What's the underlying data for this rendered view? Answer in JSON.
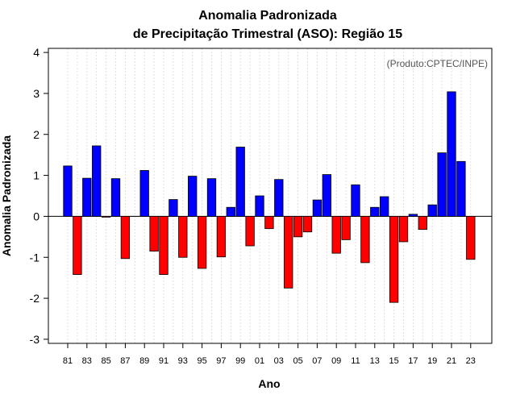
{
  "chart_data": {
    "type": "bar",
    "title": [
      "Anomalia Padronizada",
      "de Precipitação Trimestral (ASO): Região 15"
    ],
    "xlabel": "Ano",
    "ylabel": "Anomalia Padronizada",
    "credit": "(Produto:CPTEC/INPE)",
    "ylim": [
      -3.1,
      4.1
    ],
    "yticks": [
      4,
      3,
      2,
      1,
      0,
      -1,
      -2,
      -3
    ],
    "ytick_labels": [
      "4",
      "3",
      "2",
      "1",
      "0",
      "-1",
      "-2",
      "-3"
    ],
    "xtick_labels": [
      "81",
      "83",
      "85",
      "87",
      "89",
      "91",
      "93",
      "95",
      "97",
      "99",
      "01",
      "03",
      "05",
      "07",
      "09",
      "11",
      "13",
      "15",
      "17",
      "19",
      "21",
      "23"
    ],
    "categories": [
      "1981",
      "1982",
      "1983",
      "1984",
      "1985",
      "1986",
      "1987",
      "1988",
      "1989",
      "1990",
      "1991",
      "1992",
      "1993",
      "1994",
      "1995",
      "1996",
      "1997",
      "1998",
      "1999",
      "2000",
      "2001",
      "2002",
      "2003",
      "2004",
      "2005",
      "2006",
      "2007",
      "2008",
      "2009",
      "2010",
      "2011",
      "2012",
      "2013",
      "2014",
      "2015",
      "2016",
      "2017",
      "2018",
      "2019",
      "2020",
      "2021",
      "2022",
      "2023"
    ],
    "values": [
      1.23,
      -1.42,
      0.93,
      1.72,
      -0.02,
      0.92,
      -1.03,
      0.0,
      1.12,
      -0.85,
      -1.42,
      0.41,
      -1.0,
      0.98,
      -1.27,
      0.92,
      -0.99,
      0.22,
      1.69,
      -0.72,
      0.5,
      -0.3,
      0.9,
      -1.75,
      -0.5,
      -0.38,
      0.4,
      1.02,
      -0.9,
      -0.57,
      0.77,
      -1.13,
      0.22,
      0.48,
      -2.1,
      -0.62,
      0.05,
      -0.32,
      0.28,
      1.55,
      3.04,
      1.34,
      -1.05
    ],
    "positive_color": "#0000ff",
    "negative_color": "#ff0000",
    "grid": true
  }
}
